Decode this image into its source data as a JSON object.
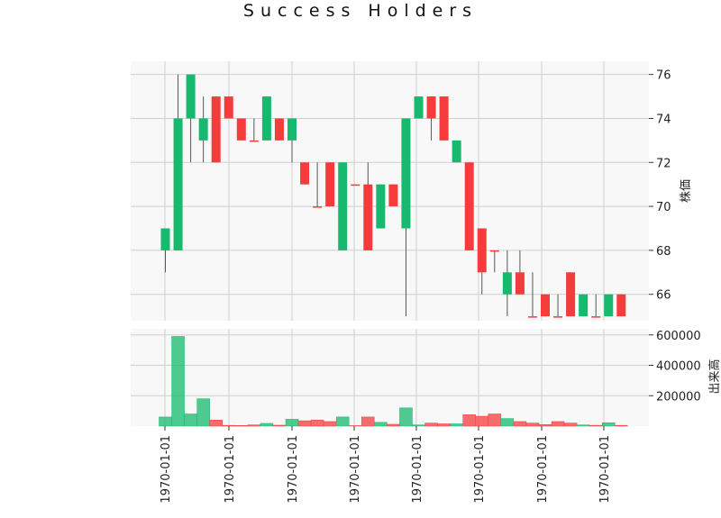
{
  "chart_data": {
    "type": "candlestick",
    "title": "Success Holders",
    "ylabel_price": "株価",
    "ylabel_volume": "出来高",
    "x_tick_labels": [
      "1970-01-01",
      "1970-01-01",
      "1970-01-01",
      "1970-01-01",
      "1970-01-01",
      "1970-01-01",
      "1970-01-01",
      "1970-01-01"
    ],
    "price_ylim": [
      64.8,
      76.6
    ],
    "price_yticks": [
      66,
      68,
      70,
      72,
      74,
      76
    ],
    "volume_ylim": [
      0,
      640000
    ],
    "volume_yticks": [
      200000,
      400000,
      600000
    ],
    "colors": {
      "up": "#16b96e",
      "down": "#f53c3c",
      "wick": "#555555",
      "grid": "#d0d0d0",
      "panel_bg": "#f8f8f8"
    },
    "candles": [
      {
        "open": 68,
        "high": 69,
        "low": 67,
        "close": 69,
        "volume": 60000
      },
      {
        "open": 68,
        "high": 76,
        "low": 68,
        "close": 74,
        "volume": 590000
      },
      {
        "open": 74,
        "high": 76,
        "low": 72,
        "close": 76,
        "volume": 80000
      },
      {
        "open": 73,
        "high": 75,
        "low": 72,
        "close": 74,
        "volume": 180000
      },
      {
        "open": 75,
        "high": 75,
        "low": 72,
        "close": 72,
        "volume": 40000
      },
      {
        "open": 75,
        "high": 75,
        "low": 74,
        "close": 74,
        "volume": 5000
      },
      {
        "open": 74,
        "high": 74,
        "low": 73,
        "close": 73,
        "volume": 4000
      },
      {
        "open": 73,
        "high": 74,
        "low": 73,
        "close": 73,
        "volume": 8000
      },
      {
        "open": 73,
        "high": 75,
        "low": 73,
        "close": 75,
        "volume": 18000
      },
      {
        "open": 74,
        "high": 74,
        "low": 73,
        "close": 73,
        "volume": 6000
      },
      {
        "open": 73,
        "high": 74,
        "low": 72,
        "close": 74,
        "volume": 45000
      },
      {
        "open": 72,
        "high": 72,
        "low": 71,
        "close": 71,
        "volume": 35000
      },
      {
        "open": 70,
        "high": 72,
        "low": 70,
        "close": 70,
        "volume": 40000
      },
      {
        "open": 72,
        "high": 72,
        "low": 70,
        "close": 70,
        "volume": 30000
      },
      {
        "open": 68,
        "high": 72,
        "low": 68,
        "close": 72,
        "volume": 60000
      },
      {
        "open": 71,
        "high": 71,
        "low": 71,
        "close": 71,
        "volume": 3000
      },
      {
        "open": 71,
        "high": 72,
        "low": 68,
        "close": 68,
        "volume": 60000
      },
      {
        "open": 69,
        "high": 71,
        "low": 69,
        "close": 71,
        "volume": 25000
      },
      {
        "open": 71,
        "high": 71,
        "low": 70,
        "close": 70,
        "volume": 12000
      },
      {
        "open": 69,
        "high": 74,
        "low": 65,
        "close": 74,
        "volume": 120000
      },
      {
        "open": 74,
        "high": 75,
        "low": 74,
        "close": 75,
        "volume": 8000
      },
      {
        "open": 75,
        "high": 75,
        "low": 73,
        "close": 74,
        "volume": 20000
      },
      {
        "open": 75,
        "high": 75,
        "low": 73,
        "close": 73,
        "volume": 15000
      },
      {
        "open": 72,
        "high": 73,
        "low": 72,
        "close": 73,
        "volume": 15000
      },
      {
        "open": 72,
        "high": 72,
        "low": 68,
        "close": 68,
        "volume": 75000
      },
      {
        "open": 69,
        "high": 69,
        "low": 66,
        "close": 67,
        "volume": 65000
      },
      {
        "open": 68,
        "high": 68,
        "low": 67,
        "close": 68,
        "volume": 80000
      },
      {
        "open": 66,
        "high": 68,
        "low": 65,
        "close": 67,
        "volume": 50000
      },
      {
        "open": 67,
        "high": 68,
        "low": 66,
        "close": 66,
        "volume": 30000
      },
      {
        "open": 65,
        "high": 67,
        "low": 65,
        "close": 65,
        "volume": 20000
      },
      {
        "open": 66,
        "high": 66,
        "low": 65,
        "close": 65,
        "volume": 10000
      },
      {
        "open": 65,
        "high": 66,
        "low": 65,
        "close": 65,
        "volume": 30000
      },
      {
        "open": 67,
        "high": 67,
        "low": 65,
        "close": 65,
        "volume": 20000
      },
      {
        "open": 65,
        "high": 66,
        "low": 65,
        "close": 66,
        "volume": 8000
      },
      {
        "open": 65,
        "high": 66,
        "low": 65,
        "close": 65,
        "volume": 5000
      },
      {
        "open": 65,
        "high": 66,
        "low": 65,
        "close": 66,
        "volume": 22000
      },
      {
        "open": 66,
        "high": 66,
        "low": 65,
        "close": 65,
        "volume": 5000
      }
    ]
  }
}
